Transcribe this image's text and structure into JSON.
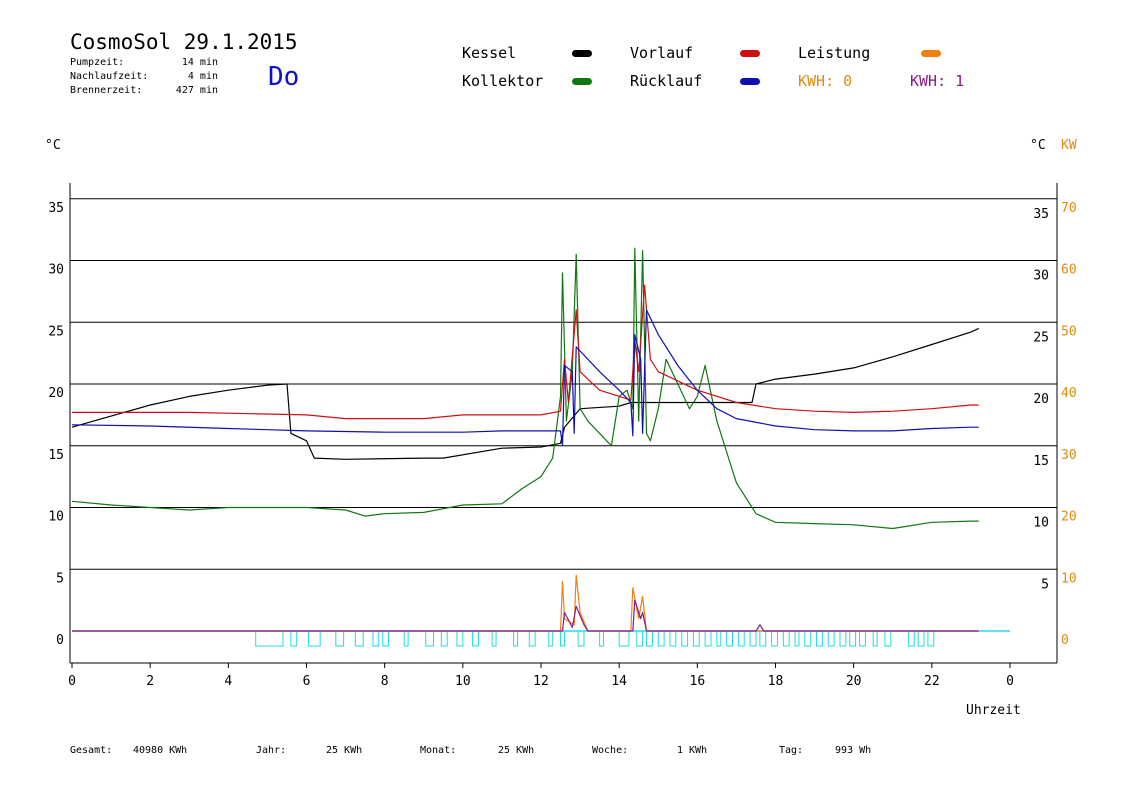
{
  "header": {
    "title": "CosmoSol 29.1.2015",
    "pump_label": "Pumpzeit:",
    "pump_value": "14 min",
    "nachlauf_label": "Nachlaufzeit:",
    "nachlauf_value": "4 min",
    "brenner_label": "Brennerzeit:",
    "brenner_value": "427 min",
    "weekday": "Do"
  },
  "legend": {
    "kessel": "Kessel",
    "kollektor": "Kollektor",
    "vorlauf": "Vorlauf",
    "ruecklauf": "Rücklauf",
    "leistung": "Leistung",
    "kwh0": "KWH: 0",
    "kwh1": "KWH: 1"
  },
  "colors": {
    "kessel": "#000000",
    "kollektor": "#117711",
    "vorlauf": "#d01010",
    "ruecklauf": "#1010b0",
    "leistung": "#f08010",
    "kwh1": "#8a1a8a",
    "pump": "#22dddd"
  },
  "footer": {
    "gesamt_label": "Gesamt:",
    "gesamt_value": "40980 KWh",
    "jahr_label": "Jahr:",
    "jahr_value": "25 KWh",
    "monat_label": "Monat:",
    "monat_value": "25 KWh",
    "woche_label": "Woche:",
    "woche_value": "1 KWh",
    "tag_label": "Tag:",
    "tag_value": "993 Wh"
  },
  "chart_data": {
    "type": "line",
    "title": "CosmoSol 29.1.2015",
    "xlabel": "Uhrzeit",
    "ylabel_left": "°C",
    "ylabel_right": "°C",
    "ylabel_right2": "KW",
    "xlim": [
      0,
      24
    ],
    "ylim": [
      -2,
      37
    ],
    "x_ticks": [
      "0",
      "2",
      "4",
      "6",
      "8",
      "10",
      "12",
      "14",
      "16",
      "18",
      "20",
      "22",
      "0"
    ],
    "y_ticks_left": [
      "0",
      "5",
      "10",
      "15",
      "20",
      "25",
      "30",
      "35"
    ],
    "y_ticks_right": [
      "5",
      "10",
      "15",
      "20",
      "25",
      "30",
      "35"
    ],
    "y_ticks_kw": [
      "0",
      "10",
      "20",
      "30",
      "40",
      "50",
      "60",
      "70"
    ],
    "grid_lines_y": [
      5,
      10,
      15,
      20,
      25,
      30,
      35
    ],
    "series": [
      {
        "name": "Kessel",
        "color": "#000000",
        "points": [
          [
            0,
            16.5
          ],
          [
            1,
            17.4
          ],
          [
            2,
            18.3
          ],
          [
            3,
            19
          ],
          [
            4,
            19.5
          ],
          [
            5,
            19.9
          ],
          [
            5.5,
            20
          ],
          [
            5.6,
            16
          ],
          [
            6,
            15.4
          ],
          [
            6.2,
            14
          ],
          [
            7,
            13.9
          ],
          [
            9,
            14
          ],
          [
            9.5,
            14
          ],
          [
            11,
            14.8
          ],
          [
            12,
            14.9
          ],
          [
            12.5,
            15.2
          ],
          [
            12.6,
            16.5
          ],
          [
            13,
            18
          ],
          [
            14,
            18.2
          ],
          [
            14.3,
            18.5
          ],
          [
            15,
            18.5
          ],
          [
            16.5,
            18.5
          ],
          [
            17.4,
            18.5
          ],
          [
            17.5,
            20
          ],
          [
            18,
            20.4
          ],
          [
            19,
            20.8
          ],
          [
            20,
            21.3
          ],
          [
            21,
            22.2
          ],
          [
            22,
            23.2
          ],
          [
            23,
            24.2
          ],
          [
            23.2,
            24.5
          ]
        ]
      },
      {
        "name": "Kollektor",
        "color": "#117711",
        "points": [
          [
            0,
            10.5
          ],
          [
            1,
            10.2
          ],
          [
            2,
            10
          ],
          [
            3,
            9.8
          ],
          [
            4,
            10
          ],
          [
            5,
            10
          ],
          [
            6,
            10
          ],
          [
            7,
            9.8
          ],
          [
            7.5,
            9.3
          ],
          [
            8,
            9.5
          ],
          [
            9,
            9.6
          ],
          [
            10,
            10.2
          ],
          [
            11,
            10.3
          ],
          [
            11.5,
            11.5
          ],
          [
            12,
            12.5
          ],
          [
            12.3,
            14
          ],
          [
            12.5,
            19
          ],
          [
            12.55,
            29
          ],
          [
            12.65,
            17
          ],
          [
            12.8,
            21
          ],
          [
            12.9,
            30.5
          ],
          [
            13,
            18
          ],
          [
            13.2,
            17
          ],
          [
            13.5,
            16
          ],
          [
            13.8,
            15
          ],
          [
            14,
            19
          ],
          [
            14.2,
            19.5
          ],
          [
            14.35,
            18
          ],
          [
            14.4,
            31
          ],
          [
            14.5,
            17
          ],
          [
            14.6,
            30.8
          ],
          [
            14.7,
            16
          ],
          [
            14.8,
            15.4
          ],
          [
            15,
            18
          ],
          [
            15.2,
            22
          ],
          [
            15.5,
            20
          ],
          [
            15.8,
            18
          ],
          [
            16,
            19
          ],
          [
            16.2,
            21.5
          ],
          [
            16.5,
            17
          ],
          [
            17,
            12
          ],
          [
            17.5,
            9.5
          ],
          [
            18,
            8.8
          ],
          [
            19,
            8.7
          ],
          [
            20,
            8.6
          ],
          [
            21,
            8.3
          ],
          [
            22,
            8.8
          ],
          [
            23,
            8.9
          ],
          [
            23.2,
            8.9
          ]
        ]
      },
      {
        "name": "Vorlauf",
        "color": "#d01010",
        "points": [
          [
            0,
            17.7
          ],
          [
            3,
            17.7
          ],
          [
            6,
            17.5
          ],
          [
            7,
            17.2
          ],
          [
            9,
            17.2
          ],
          [
            10,
            17.5
          ],
          [
            12,
            17.5
          ],
          [
            12.5,
            17.8
          ],
          [
            12.6,
            22
          ],
          [
            12.7,
            18.5
          ],
          [
            12.9,
            26
          ],
          [
            13,
            21
          ],
          [
            13.5,
            19.5
          ],
          [
            14.3,
            18.7
          ],
          [
            14.4,
            23.5
          ],
          [
            14.5,
            21
          ],
          [
            14.65,
            28
          ],
          [
            14.8,
            22
          ],
          [
            15,
            21
          ],
          [
            16,
            19.5
          ],
          [
            17,
            18.5
          ],
          [
            18,
            18
          ],
          [
            19,
            17.8
          ],
          [
            20,
            17.7
          ],
          [
            21,
            17.8
          ],
          [
            22,
            18
          ],
          [
            23,
            18.3
          ],
          [
            23.2,
            18.3
          ]
        ]
      },
      {
        "name": "Rücklauf",
        "color": "#1010b0",
        "points": [
          [
            0,
            16.7
          ],
          [
            2,
            16.6
          ],
          [
            4,
            16.4
          ],
          [
            5,
            16.3
          ],
          [
            6,
            16.2
          ],
          [
            8,
            16.1
          ],
          [
            10,
            16.1
          ],
          [
            11,
            16.2
          ],
          [
            12,
            16.2
          ],
          [
            12.5,
            16.2
          ],
          [
            12.55,
            15
          ],
          [
            12.6,
            21.5
          ],
          [
            12.8,
            21
          ],
          [
            12.85,
            16
          ],
          [
            12.9,
            23
          ],
          [
            13.5,
            21
          ],
          [
            14,
            19.5
          ],
          [
            14.3,
            18.5
          ],
          [
            14.35,
            15.8
          ],
          [
            14.4,
            24
          ],
          [
            14.55,
            22
          ],
          [
            14.6,
            16
          ],
          [
            14.7,
            26
          ],
          [
            15,
            24
          ],
          [
            15.5,
            21.5
          ],
          [
            16,
            19.5
          ],
          [
            16.5,
            18
          ],
          [
            17,
            17.2
          ],
          [
            18,
            16.6
          ],
          [
            19,
            16.3
          ],
          [
            20,
            16.2
          ],
          [
            21,
            16.2
          ],
          [
            22,
            16.4
          ],
          [
            23,
            16.5
          ],
          [
            23.2,
            16.5
          ]
        ]
      },
      {
        "name": "Leistung",
        "color": "#f08010",
        "points": [
          [
            0,
            0
          ],
          [
            12.5,
            0
          ],
          [
            12.55,
            4
          ],
          [
            12.6,
            1
          ],
          [
            12.85,
            0.5
          ],
          [
            12.9,
            4.5
          ],
          [
            13,
            1.5
          ],
          [
            13.2,
            0
          ],
          [
            14.3,
            0
          ],
          [
            14.35,
            3.5
          ],
          [
            14.5,
            1
          ],
          [
            14.6,
            2.8
          ],
          [
            14.7,
            0
          ],
          [
            23.2,
            0
          ]
        ]
      },
      {
        "name": "KWH: 1",
        "color": "#8a1a8a",
        "points": [
          [
            0,
            0
          ],
          [
            12.55,
            0
          ],
          [
            12.6,
            1.5
          ],
          [
            12.8,
            0.3
          ],
          [
            12.9,
            2
          ],
          [
            13.1,
            0.5
          ],
          [
            13.2,
            0
          ],
          [
            14.35,
            0
          ],
          [
            14.4,
            2.5
          ],
          [
            14.55,
            1
          ],
          [
            14.6,
            1.5
          ],
          [
            14.7,
            0
          ],
          [
            17.5,
            0
          ],
          [
            17.6,
            0.5
          ],
          [
            17.7,
            0
          ],
          [
            23.2,
            0
          ]
        ]
      }
    ],
    "pump_intervals": [
      [
        4.7,
        5.4
      ],
      [
        5.6,
        5.75
      ],
      [
        6.05,
        6.35
      ],
      [
        6.75,
        6.95
      ],
      [
        7.25,
        7.45
      ],
      [
        7.7,
        7.85
      ],
      [
        7.95,
        8.1
      ],
      [
        8.5,
        8.6
      ],
      [
        9.05,
        9.25
      ],
      [
        9.45,
        9.6
      ],
      [
        9.85,
        10
      ],
      [
        10.25,
        10.4
      ],
      [
        10.75,
        10.85
      ],
      [
        11.3,
        11.4
      ],
      [
        11.7,
        11.85
      ],
      [
        12.2,
        12.3
      ],
      [
        12.5,
        12.6
      ],
      [
        12.95,
        13.1
      ],
      [
        13.5,
        13.6
      ],
      [
        14,
        14.25
      ],
      [
        14.45,
        14.6
      ],
      [
        14.7,
        14.85
      ],
      [
        15,
        15.15
      ],
      [
        15.3,
        15.45
      ],
      [
        15.6,
        15.75
      ],
      [
        15.9,
        16.05
      ],
      [
        16.2,
        16.35
      ],
      [
        16.5,
        16.6
      ],
      [
        16.75,
        16.9
      ],
      [
        17.05,
        17.2
      ],
      [
        17.35,
        17.5
      ],
      [
        17.6,
        17.75
      ],
      [
        17.9,
        18.05
      ],
      [
        18.2,
        18.35
      ],
      [
        18.5,
        18.6
      ],
      [
        18.75,
        18.9
      ],
      [
        19.05,
        19.2
      ],
      [
        19.35,
        19.5
      ],
      [
        19.65,
        19.8
      ],
      [
        19.9,
        20.05
      ],
      [
        20.15,
        20.3
      ],
      [
        20.5,
        20.6
      ],
      [
        20.8,
        20.95
      ],
      [
        21.4,
        21.55
      ],
      [
        21.65,
        21.8
      ],
      [
        21.9,
        22.05
      ]
    ]
  }
}
